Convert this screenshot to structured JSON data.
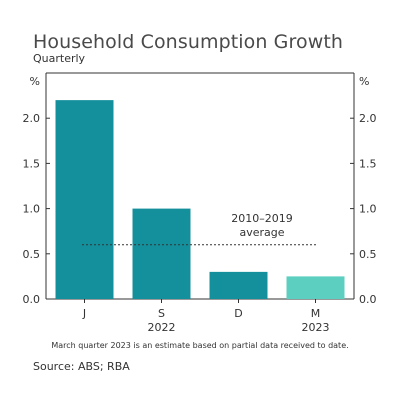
{
  "chart": {
    "title": "Household Consumption Growth",
    "subtitle": "Quarterly",
    "unit_left": "%",
    "unit_right": "%",
    "note": "March quarter 2023 is an estimate based on partial data received to date.",
    "source": "Source: ABS; RBA",
    "average_label_line1": "2010–2019",
    "average_label_line2": "average"
  },
  "chart_data": {
    "type": "bar",
    "categories": [
      "J",
      "S",
      "D",
      "M"
    ],
    "year_labels": [
      "",
      "2022",
      "",
      "2023"
    ],
    "values": [
      2.2,
      1.0,
      0.3,
      0.25
    ],
    "bar_colors": [
      "#14909c",
      "#14909c",
      "#14909c",
      "#5ccfc0"
    ],
    "estimate_flags": [
      false,
      false,
      false,
      true
    ],
    "average_value": 0.6,
    "ylim": [
      0,
      2.5
    ],
    "yticks": [
      "0.0",
      "0.5",
      "1.0",
      "1.5",
      "2.0"
    ],
    "ytick_values": [
      0,
      0.5,
      1.0,
      1.5,
      2.0
    ],
    "grid": false,
    "title": "Household Consumption Growth",
    "xlabel": "",
    "ylabel": "%"
  }
}
